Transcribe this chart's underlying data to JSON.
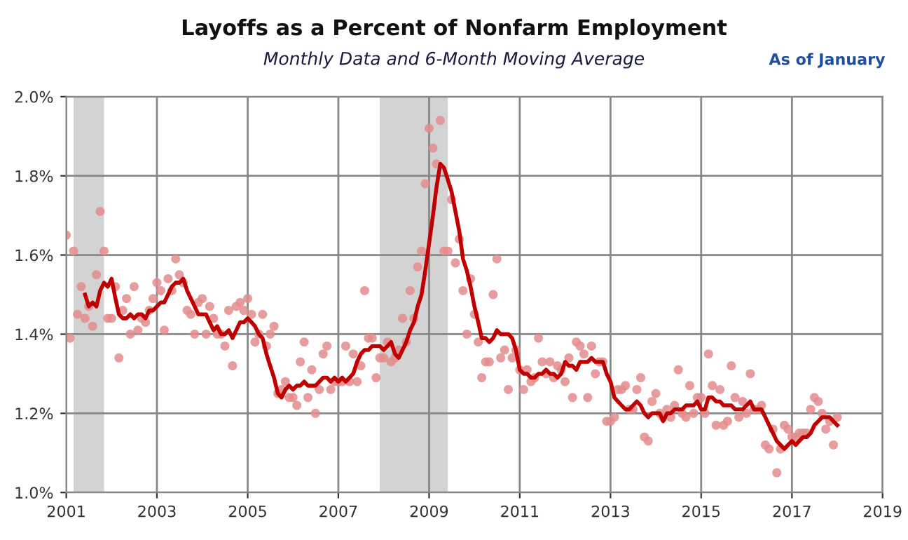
{
  "chart_data": {
    "type": "scatter",
    "title": "Layoffs as a Percent of Nonfarm Employment",
    "subtitle": "Monthly Data and 6-Month Moving Average",
    "annotations": [
      "As of January"
    ],
    "x": [
      "2001-01",
      "2001-02",
      "2001-03",
      "2001-04",
      "2001-05",
      "2001-06",
      "2001-07",
      "2001-08",
      "2001-09",
      "2001-10",
      "2001-11",
      "2001-12",
      "2002-01",
      "2002-02",
      "2002-03",
      "2002-04",
      "2002-05",
      "2002-06",
      "2002-07",
      "2002-08",
      "2002-09",
      "2002-10",
      "2002-11",
      "2002-12",
      "2003-01",
      "2003-02",
      "2003-03",
      "2003-04",
      "2003-05",
      "2003-06",
      "2003-07",
      "2003-08",
      "2003-09",
      "2003-10",
      "2003-11",
      "2003-12",
      "2004-01",
      "2004-02",
      "2004-03",
      "2004-04",
      "2004-05",
      "2004-06",
      "2004-07",
      "2004-08",
      "2004-09",
      "2004-10",
      "2004-11",
      "2004-12",
      "2005-01",
      "2005-02",
      "2005-03",
      "2005-04",
      "2005-05",
      "2005-06",
      "2005-07",
      "2005-08",
      "2005-09",
      "2005-10",
      "2005-11",
      "2005-12",
      "2006-01",
      "2006-02",
      "2006-03",
      "2006-04",
      "2006-05",
      "2006-06",
      "2006-07",
      "2006-08",
      "2006-09",
      "2006-10",
      "2006-11",
      "2006-12",
      "2007-01",
      "2007-02",
      "2007-03",
      "2007-04",
      "2007-05",
      "2007-06",
      "2007-07",
      "2007-08",
      "2007-09",
      "2007-10",
      "2007-11",
      "2007-12",
      "2008-01",
      "2008-02",
      "2008-03",
      "2008-04",
      "2008-05",
      "2008-06",
      "2008-07",
      "2008-08",
      "2008-09",
      "2008-10",
      "2008-11",
      "2008-12",
      "2009-01",
      "2009-02",
      "2009-03",
      "2009-04",
      "2009-05",
      "2009-06",
      "2009-07",
      "2009-08",
      "2009-09",
      "2009-10",
      "2009-11",
      "2009-12",
      "2010-01",
      "2010-02",
      "2010-03",
      "2010-04",
      "2010-05",
      "2010-06",
      "2010-07",
      "2010-08",
      "2010-09",
      "2010-10",
      "2010-11",
      "2010-12",
      "2011-01",
      "2011-02",
      "2011-03",
      "2011-04",
      "2011-05",
      "2011-06",
      "2011-07",
      "2011-08",
      "2011-09",
      "2011-10",
      "2011-11",
      "2011-12",
      "2012-01",
      "2012-02",
      "2012-03",
      "2012-04",
      "2012-05",
      "2012-06",
      "2012-07",
      "2012-08",
      "2012-09",
      "2012-10",
      "2012-11",
      "2012-12",
      "2013-01",
      "2013-02",
      "2013-03",
      "2013-04",
      "2013-05",
      "2013-06",
      "2013-07",
      "2013-08",
      "2013-09",
      "2013-10",
      "2013-11",
      "2013-12",
      "2014-01",
      "2014-02",
      "2014-03",
      "2014-04",
      "2014-05",
      "2014-06",
      "2014-07",
      "2014-08",
      "2014-09",
      "2014-10",
      "2014-11",
      "2014-12",
      "2015-01",
      "2015-02",
      "2015-03",
      "2015-04",
      "2015-05",
      "2015-06",
      "2015-07",
      "2015-08",
      "2015-09",
      "2015-10",
      "2015-11",
      "2015-12",
      "2016-01",
      "2016-02",
      "2016-03",
      "2016-04",
      "2016-05",
      "2016-06",
      "2016-07",
      "2016-08",
      "2016-09",
      "2016-10",
      "2016-11",
      "2016-12",
      "2017-01",
      "2017-02",
      "2017-03",
      "2017-04",
      "2017-05",
      "2017-06",
      "2017-07",
      "2017-08",
      "2017-09",
      "2017-10",
      "2017-11",
      "2017-12",
      "2018-01"
    ],
    "series": [
      {
        "marker": "circle",
        "color": "#e38c8c",
        "values": [
          1.65,
          1.39,
          1.61,
          1.45,
          1.52,
          1.44,
          1.47,
          1.42,
          1.55,
          1.71,
          1.61,
          1.44,
          1.44,
          1.52,
          1.34,
          1.46,
          1.49,
          1.4,
          1.52,
          1.41,
          1.44,
          1.43,
          1.46,
          1.49,
          1.53,
          1.51,
          1.41,
          1.54,
          1.51,
          1.59,
          1.55,
          1.53,
          1.46,
          1.45,
          1.4,
          1.48,
          1.49,
          1.4,
          1.47,
          1.44,
          1.4,
          1.4,
          1.37,
          1.46,
          1.32,
          1.47,
          1.48,
          1.46,
          1.49,
          1.45,
          1.38,
          1.4,
          1.45,
          1.37,
          1.4,
          1.42,
          1.25,
          1.26,
          1.28,
          1.24,
          1.24,
          1.22,
          1.33,
          1.38,
          1.24,
          1.31,
          1.2,
          1.26,
          1.35,
          1.37,
          1.26,
          1.28,
          1.28,
          1.28,
          1.37,
          1.28,
          1.35,
          1.28,
          1.32,
          1.51,
          1.39,
          1.39,
          1.29,
          1.34,
          1.34,
          1.38,
          1.33,
          1.34,
          1.36,
          1.44,
          1.38,
          1.51,
          1.44,
          1.57,
          1.61,
          1.78,
          1.92,
          1.87,
          1.83,
          1.94,
          1.61,
          1.61,
          1.74,
          1.58,
          1.64,
          1.51,
          1.4,
          1.54,
          1.45,
          1.38,
          1.29,
          1.33,
          1.33,
          1.5,
          1.59,
          1.34,
          1.36,
          1.26,
          1.34,
          1.36,
          1.31,
          1.26,
          1.31,
          1.28,
          1.29,
          1.39,
          1.33,
          1.3,
          1.33,
          1.29,
          1.32,
          1.31,
          1.28,
          1.34,
          1.24,
          1.38,
          1.37,
          1.35,
          1.24,
          1.37,
          1.3,
          1.33,
          1.33,
          1.18,
          1.18,
          1.19,
          1.26,
          1.26,
          1.27,
          1.21,
          1.21,
          1.26,
          1.29,
          1.14,
          1.13,
          1.23,
          1.25,
          1.2,
          1.19,
          1.21,
          1.19,
          1.22,
          1.31,
          1.2,
          1.19,
          1.27,
          1.2,
          1.24,
          1.24,
          1.2,
          1.35,
          1.27,
          1.17,
          1.26,
          1.17,
          1.18,
          1.32,
          1.24,
          1.19,
          1.23,
          1.2,
          1.3,
          1.21,
          1.21,
          1.22,
          1.12,
          1.11,
          1.16,
          1.05,
          1.11,
          1.17,
          1.16,
          1.14,
          1.14,
          1.15,
          1.15,
          1.15,
          1.21,
          1.24,
          1.23,
          1.2,
          1.16,
          1.18,
          1.12,
          1.19
        ]
      },
      {
        "type": "line",
        "marker": "none",
        "line_style": "solid",
        "color": "#c00000",
        "values": [
          null,
          null,
          null,
          null,
          null,
          1.5,
          1.47,
          1.48,
          1.47,
          1.51,
          1.53,
          1.52,
          1.54,
          1.49,
          1.45,
          1.44,
          1.44,
          1.45,
          1.44,
          1.45,
          1.45,
          1.44,
          1.46,
          1.46,
          1.47,
          1.48,
          1.48,
          1.5,
          1.52,
          1.53,
          1.53,
          1.54,
          1.51,
          1.49,
          1.47,
          1.45,
          1.45,
          1.45,
          1.43,
          1.41,
          1.42,
          1.4,
          1.4,
          1.41,
          1.39,
          1.41,
          1.43,
          1.43,
          1.44,
          1.43,
          1.42,
          1.4,
          1.39,
          1.35,
          1.32,
          1.29,
          1.25,
          1.24,
          1.26,
          1.27,
          1.26,
          1.27,
          1.27,
          1.28,
          1.27,
          1.27,
          1.27,
          1.28,
          1.29,
          1.29,
          1.28,
          1.29,
          1.28,
          1.29,
          1.28,
          1.29,
          1.3,
          1.33,
          1.35,
          1.36,
          1.36,
          1.37,
          1.37,
          1.37,
          1.36,
          1.37,
          1.38,
          1.35,
          1.34,
          1.36,
          1.38,
          1.41,
          1.43,
          1.47,
          1.5,
          1.56,
          1.63,
          1.7,
          1.77,
          1.83,
          1.82,
          1.79,
          1.76,
          1.71,
          1.66,
          1.59,
          1.56,
          1.52,
          1.47,
          1.43,
          1.39,
          1.39,
          1.38,
          1.39,
          1.41,
          1.4,
          1.4,
          1.4,
          1.39,
          1.36,
          1.31,
          1.3,
          1.3,
          1.29,
          1.29,
          1.3,
          1.3,
          1.31,
          1.3,
          1.3,
          1.29,
          1.3,
          1.33,
          1.32,
          1.32,
          1.31,
          1.33,
          1.33,
          1.33,
          1.34,
          1.33,
          1.33,
          1.33,
          1.3,
          1.28,
          1.24,
          1.23,
          1.22,
          1.21,
          1.21,
          1.22,
          1.23,
          1.22,
          1.2,
          1.19,
          1.2,
          1.2,
          1.2,
          1.18,
          1.2,
          1.2,
          1.21,
          1.21,
          1.21,
          1.22,
          1.22,
          1.22,
          1.23,
          1.21,
          1.21,
          1.24,
          1.24,
          1.23,
          1.23,
          1.22,
          1.22,
          1.22,
          1.21,
          1.21,
          1.21,
          1.22,
          1.23,
          1.21,
          1.21,
          1.21,
          1.19,
          1.17,
          1.15,
          1.13,
          1.12,
          1.11,
          1.12,
          1.13,
          1.12,
          1.13,
          1.14,
          1.14,
          1.15,
          1.17,
          1.18,
          1.19,
          1.19,
          1.19,
          1.18,
          1.17
        ]
      }
    ],
    "xlim": [
      "2001",
      "2019"
    ],
    "xticks": [
      "2001",
      "2003",
      "2005",
      "2007",
      "2009",
      "2011",
      "2013",
      "2015",
      "2017",
      "2019"
    ],
    "ylim": [
      1.0,
      2.0
    ],
    "yticks": [
      {
        "value": 1.0,
        "label": "1.0%"
      },
      {
        "value": 1.2,
        "label": "1.2%"
      },
      {
        "value": 1.4,
        "label": "1.4%"
      },
      {
        "value": 1.6,
        "label": "1.6%"
      },
      {
        "value": 1.8,
        "label": "1.8%"
      },
      {
        "value": 2.0,
        "label": "2.0%"
      }
    ],
    "bands": [
      {
        "axis": "x",
        "from": "2001-03",
        "to": "2001-11",
        "color": "#d3d3d3"
      },
      {
        "axis": "x",
        "from": "2007-12",
        "to": "2009-06",
        "color": "#d3d3d3"
      }
    ],
    "grid": true,
    "legend": false
  }
}
